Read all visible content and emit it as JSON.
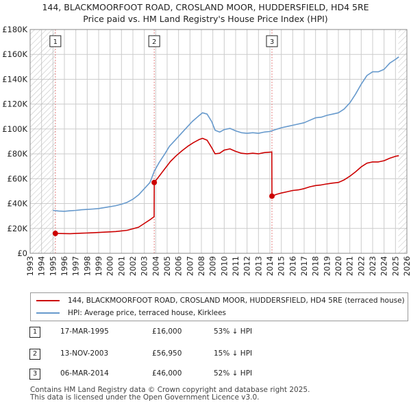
{
  "title_line1": "144, BLACKMOORFOOT ROAD, CROSLAND MOOR, HUDDERSFIELD, HD4 5RE",
  "title_line2": "Price paid vs. HM Land Registry's House Price Index (HPI)",
  "colors": {
    "price_paid": "#cc0000",
    "hpi": "#6699cc",
    "grid": "#cccccc",
    "hatch": "#bbbbbb",
    "marker_line": "#e58080"
  },
  "legend": {
    "price_paid": "144, BLACKMOORFOOT ROAD, CROSLAND MOOR, HUDDERSFIELD, HD4 5RE (terraced house)",
    "hpi": "HPI: Average price, terraced house, Kirklees"
  },
  "transactions": [
    {
      "num": "1",
      "date": "17-MAR-1995",
      "price": "£16,000",
      "hpi_diff": "53% ↓ HPI"
    },
    {
      "num": "2",
      "date": "13-NOV-2003",
      "price": "£56,950",
      "hpi_diff": "15% ↓ HPI"
    },
    {
      "num": "3",
      "date": "06-MAR-2014",
      "price": "£46,000",
      "hpi_diff": "52% ↓ HPI"
    }
  ],
  "footer": {
    "line1": "Contains HM Land Registry data © Crown copyright and database right 2025.",
    "line2": "This data is licensed under the Open Government Licence v3.0."
  },
  "chart_data": {
    "type": "line",
    "xlim": [
      1993,
      2026
    ],
    "ylim": [
      0,
      180000
    ],
    "x_ticks": [
      1993,
      1994,
      1995,
      1996,
      1997,
      1998,
      1999,
      2000,
      2001,
      2002,
      2003,
      2004,
      2005,
      2006,
      2007,
      2008,
      2009,
      2010,
      2011,
      2012,
      2013,
      2014,
      2015,
      2016,
      2017,
      2018,
      2019,
      2020,
      2021,
      2022,
      2023,
      2024,
      2025,
      2026
    ],
    "y_ticks": [
      {
        "value": 0,
        "label": "£0"
      },
      {
        "value": 20000,
        "label": "£20K"
      },
      {
        "value": 40000,
        "label": "£40K"
      },
      {
        "value": 60000,
        "label": "£60K"
      },
      {
        "value": 80000,
        "label": "£80K"
      },
      {
        "value": 100000,
        "label": "£100K"
      },
      {
        "value": 120000,
        "label": "£120K"
      },
      {
        "value": 140000,
        "label": "£140K"
      },
      {
        "value": 160000,
        "label": "£160K"
      },
      {
        "value": 180000,
        "label": "£180K"
      }
    ],
    "hatched_ranges": [
      [
        1993,
        1995.21
      ],
      [
        2025.25,
        2026
      ]
    ],
    "sales": [
      {
        "label": "1",
        "x": 1995.21,
        "y": 16000
      },
      {
        "label": "2",
        "x": 2003.87,
        "y": 56950
      },
      {
        "label": "3",
        "x": 2014.18,
        "y": 46000
      }
    ],
    "series": [
      {
        "name": "HPI: Average price, terraced house, Kirklees",
        "key": "hpi",
        "points": [
          [
            1995.0,
            34500
          ],
          [
            1995.5,
            34000
          ],
          [
            1996.0,
            33800
          ],
          [
            1996.5,
            34200
          ],
          [
            1997.0,
            34500
          ],
          [
            1997.5,
            35000
          ],
          [
            1998.0,
            35300
          ],
          [
            1998.5,
            35600
          ],
          [
            1999.0,
            36000
          ],
          [
            1999.5,
            36800
          ],
          [
            2000.0,
            37500
          ],
          [
            2000.5,
            38300
          ],
          [
            2001.0,
            39500
          ],
          [
            2001.5,
            41000
          ],
          [
            2002.0,
            43500
          ],
          [
            2002.5,
            47000
          ],
          [
            2003.0,
            52000
          ],
          [
            2003.5,
            57000
          ],
          [
            2003.87,
            66000
          ],
          [
            2004.3,
            73000
          ],
          [
            2004.8,
            80000
          ],
          [
            2005.2,
            86000
          ],
          [
            2005.7,
            91000
          ],
          [
            2006.2,
            96000
          ],
          [
            2006.7,
            101000
          ],
          [
            2007.2,
            106000
          ],
          [
            2007.7,
            110000
          ],
          [
            2008.1,
            113000
          ],
          [
            2008.5,
            112000
          ],
          [
            2008.9,
            106000
          ],
          [
            2009.2,
            99000
          ],
          [
            2009.6,
            97500
          ],
          [
            2010.0,
            99500
          ],
          [
            2010.5,
            100500
          ],
          [
            2011.0,
            98500
          ],
          [
            2011.5,
            97000
          ],
          [
            2012.0,
            96500
          ],
          [
            2012.5,
            97000
          ],
          [
            2013.0,
            96500
          ],
          [
            2013.5,
            97500
          ],
          [
            2014.0,
            98000
          ],
          [
            2014.5,
            99500
          ],
          [
            2015.0,
            101000
          ],
          [
            2015.5,
            102000
          ],
          [
            2016.0,
            103000
          ],
          [
            2016.5,
            104000
          ],
          [
            2017.0,
            105000
          ],
          [
            2017.5,
            107000
          ],
          [
            2018.0,
            109000
          ],
          [
            2018.5,
            109500
          ],
          [
            2019.0,
            111000
          ],
          [
            2019.5,
            112000
          ],
          [
            2020.0,
            113000
          ],
          [
            2020.5,
            116000
          ],
          [
            2021.0,
            121000
          ],
          [
            2021.5,
            128000
          ],
          [
            2022.0,
            136000
          ],
          [
            2022.5,
            143000
          ],
          [
            2023.0,
            146000
          ],
          [
            2023.5,
            146000
          ],
          [
            2024.0,
            148000
          ],
          [
            2024.5,
            153000
          ],
          [
            2025.0,
            156000
          ],
          [
            2025.3,
            158000
          ]
        ]
      },
      {
        "name": "144, BLACKMOORFOOT ROAD, CROSLAND MOOR, HUDDERSFIELD, HD4 5RE (terraced house)",
        "key": "price_paid",
        "points": [
          [
            1995.21,
            16000
          ],
          [
            1995.7,
            15900
          ],
          [
            1996.5,
            15800
          ],
          [
            1997.5,
            16200
          ],
          [
            1998.5,
            16500
          ],
          [
            1999.5,
            17000
          ],
          [
            2000.5,
            17500
          ],
          [
            2001.5,
            18500
          ],
          [
            2002.5,
            21000
          ],
          [
            2003.0,
            24000
          ],
          [
            2003.5,
            27000
          ],
          [
            2003.86,
            29500
          ],
          [
            2003.87,
            56950
          ],
          [
            2004.3,
            62000
          ],
          [
            2004.8,
            68000
          ],
          [
            2005.3,
            74000
          ],
          [
            2005.8,
            78500
          ],
          [
            2006.3,
            82500
          ],
          [
            2006.8,
            86000
          ],
          [
            2007.3,
            89000
          ],
          [
            2007.8,
            91500
          ],
          [
            2008.1,
            92500
          ],
          [
            2008.5,
            91000
          ],
          [
            2008.9,
            85000
          ],
          [
            2009.2,
            80000
          ],
          [
            2009.6,
            80500
          ],
          [
            2010.0,
            83000
          ],
          [
            2010.5,
            84000
          ],
          [
            2011.0,
            82000
          ],
          [
            2011.5,
            80500
          ],
          [
            2012.0,
            80000
          ],
          [
            2012.5,
            80500
          ],
          [
            2013.0,
            80000
          ],
          [
            2013.5,
            81000
          ],
          [
            2014.17,
            81500
          ],
          [
            2014.18,
            46000
          ],
          [
            2014.6,
            47500
          ],
          [
            2015.0,
            48500
          ],
          [
            2015.5,
            49500
          ],
          [
            2016.0,
            50500
          ],
          [
            2016.5,
            51000
          ],
          [
            2017.0,
            52000
          ],
          [
            2017.5,
            53500
          ],
          [
            2018.0,
            54500
          ],
          [
            2018.5,
            55000
          ],
          [
            2019.0,
            55800
          ],
          [
            2019.5,
            56500
          ],
          [
            2020.0,
            57000
          ],
          [
            2020.5,
            59000
          ],
          [
            2021.0,
            62000
          ],
          [
            2021.5,
            65500
          ],
          [
            2022.0,
            69500
          ],
          [
            2022.5,
            72500
          ],
          [
            2023.0,
            73500
          ],
          [
            2023.5,
            73500
          ],
          [
            2024.0,
            74500
          ],
          [
            2024.5,
            76500
          ],
          [
            2025.0,
            78000
          ],
          [
            2025.3,
            78500
          ]
        ]
      }
    ]
  }
}
